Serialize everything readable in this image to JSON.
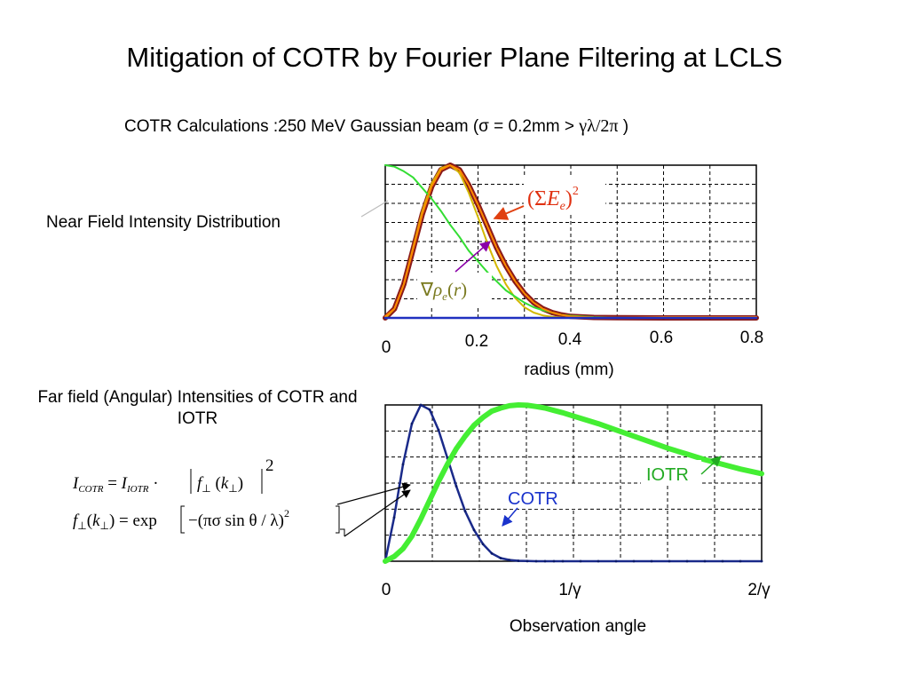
{
  "title": "Mitigation of COTR by Fourier Plane Filtering at LCLS",
  "subtitle": {
    "text": "COTR Calculations :250 MeV  Gaussian beam (σ = 0.2mm > ",
    "symbol": "γλ/2π",
    "close": " )"
  },
  "near_label": "Near Field Intensity Distribution",
  "far_label": "Far field (Angular) Intensities of COTR and IOTR",
  "equations": {
    "line1": "I_COTR = I_IOTR · |f⊥(k⊥)|²",
    "line2": "f⊥(k⊥) = exp[−(πσ sinθ / λ)²]"
  },
  "colors": {
    "sum_field": "#8b1a1a",
    "sum_field_arrow": "#e04010",
    "grad_rho": "#d4b800",
    "grad_rho_label": "#7a7a20",
    "grad_rho_arrow": "#8a00a8",
    "green": "#33dd33",
    "orange": "#ff8800",
    "blue": "#2030c0",
    "cotr": "#1a2a8a",
    "iotr": "#44ee33",
    "cotr_label": "#1a33cc",
    "iotr_label": "#22aa22"
  },
  "chart_data": [
    {
      "type": "line",
      "title": "",
      "xlabel": "radius (mm)",
      "ylabel": "",
      "xlim": [
        0,
        0.8
      ],
      "ylim": [
        0,
        1
      ],
      "grid": true,
      "x_ticks": [
        "0",
        "0.2",
        "0.4",
        "0.6",
        "0.8"
      ],
      "x": [
        0,
        0.02,
        0.04,
        0.06,
        0.08,
        0.1,
        0.12,
        0.14,
        0.16,
        0.18,
        0.2,
        0.22,
        0.24,
        0.26,
        0.28,
        0.3,
        0.32,
        0.34,
        0.36,
        0.38,
        0.4,
        0.45,
        0.5,
        0.6,
        0.7,
        0.8
      ],
      "series": [
        {
          "name": "(ΣE_e)²",
          "color": "#8b1a1a",
          "values": [
            0,
            0.06,
            0.22,
            0.45,
            0.68,
            0.86,
            0.97,
            1.0,
            0.97,
            0.87,
            0.74,
            0.6,
            0.46,
            0.34,
            0.24,
            0.16,
            0.1,
            0.06,
            0.035,
            0.02,
            0.01,
            0.003,
            0.001,
            0,
            0,
            0
          ]
        },
        {
          "name": "∇ρ_e(r)",
          "color": "#d4b800",
          "values": [
            0,
            0.06,
            0.22,
            0.46,
            0.7,
            0.88,
            0.98,
            1.0,
            0.95,
            0.82,
            0.66,
            0.49,
            0.34,
            0.22,
            0.13,
            0.07,
            0.035,
            0.016,
            0.007,
            0.003,
            0.001,
            0,
            0,
            0,
            0,
            0
          ]
        },
        {
          "values": [
            1.0,
            0.99,
            0.96,
            0.92,
            0.85,
            0.78,
            0.7,
            0.61,
            0.53,
            0.44,
            0.37,
            0.3,
            0.24,
            0.18,
            0.14,
            0.1,
            0.07,
            0.05,
            0.035,
            0.02,
            0.014,
            0.005,
            0.002,
            0,
            0,
            0
          ],
          "color": "#33dd33"
        },
        {
          "values": [
            0.01,
            0.06,
            0.22,
            0.45,
            0.68,
            0.86,
            0.97,
            1.0,
            0.97,
            0.87,
            0.74,
            0.6,
            0.46,
            0.34,
            0.24,
            0.16,
            0.1,
            0.06,
            0.035,
            0.02,
            0.01,
            0.003,
            0.001,
            0.005,
            0.005,
            0.005
          ],
          "color": "#ff8800"
        },
        {
          "values": [
            0,
            0,
            0,
            0,
            0,
            0,
            0,
            0,
            0,
            0,
            0,
            0,
            0,
            0,
            0,
            0,
            0,
            0,
            0,
            0,
            0,
            0,
            0,
            0,
            0,
            0
          ],
          "color": "#2030c0"
        }
      ]
    },
    {
      "type": "line",
      "title": "",
      "xlabel": "Observation angle",
      "ylabel": "",
      "xlim": [
        0,
        2.12
      ],
      "ylim": [
        0,
        1
      ],
      "grid": true,
      "x_ticks": [
        "0",
        "1/γ",
        "2/γ"
      ],
      "x": [
        0,
        0.05,
        0.1,
        0.15,
        0.2,
        0.25,
        0.3,
        0.35,
        0.4,
        0.45,
        0.5,
        0.55,
        0.6,
        0.65,
        0.7,
        0.75,
        0.8,
        0.85,
        0.9,
        0.95,
        1.0,
        1.1,
        1.2,
        1.3,
        1.4,
        1.5,
        1.6,
        1.7,
        1.8,
        1.9,
        2.0,
        2.12
      ],
      "series": [
        {
          "name": "COTR",
          "color": "#1a2a8a",
          "values": [
            0,
            0.28,
            0.62,
            0.88,
            1.0,
            0.97,
            0.84,
            0.66,
            0.48,
            0.32,
            0.2,
            0.11,
            0.05,
            0.02,
            0.008,
            0.003,
            0.001,
            0,
            0,
            0,
            0,
            0,
            0,
            0,
            0,
            0,
            0,
            0,
            0,
            0,
            0,
            0
          ]
        },
        {
          "name": "IOTR",
          "color": "#44ee33",
          "values": [
            0,
            0.03,
            0.08,
            0.16,
            0.27,
            0.39,
            0.51,
            0.62,
            0.72,
            0.8,
            0.87,
            0.92,
            0.96,
            0.98,
            0.995,
            1.0,
            0.998,
            0.99,
            0.98,
            0.965,
            0.95,
            0.915,
            0.88,
            0.84,
            0.8,
            0.76,
            0.72,
            0.685,
            0.65,
            0.62,
            0.59,
            0.56
          ]
        }
      ]
    }
  ]
}
